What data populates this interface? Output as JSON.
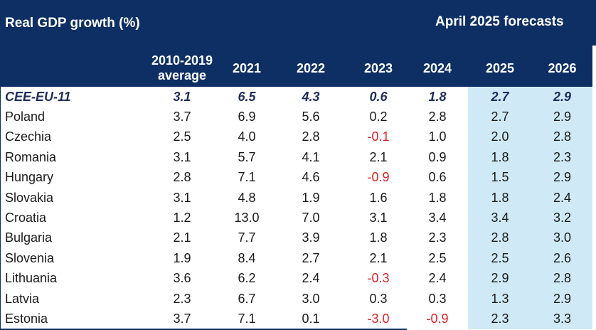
{
  "header": {
    "title": "Real GDP growth (%)",
    "forecast_label": "April 2025 forecasts",
    "columns": [
      "2010-2019 average",
      "2021",
      "2022",
      "2023",
      "2024",
      "2025",
      "2026"
    ]
  },
  "colors": {
    "header_bg": "#0d2f63",
    "forecast_bg": "#cfeaf6",
    "negative": "#e02020",
    "aggregate_text": "#1f2d5a"
  },
  "rows": [
    {
      "country": "CEE-EU-11",
      "values": [
        "3.1",
        "6.5",
        "4.3",
        "0.6",
        "1.8",
        "2.7",
        "2.9"
      ],
      "aggregate": true
    },
    {
      "country": "Poland",
      "values": [
        "3.7",
        "6.9",
        "5.6",
        "0.2",
        "2.8",
        "2.7",
        "2.9"
      ]
    },
    {
      "country": "Czechia",
      "values": [
        "2.5",
        "4.0",
        "2.8",
        "-0.1",
        "1.0",
        "2.0",
        "2.8"
      ]
    },
    {
      "country": "Romania",
      "values": [
        "3.1",
        "5.7",
        "4.1",
        "2.1",
        "0.9",
        "1.8",
        "2.3"
      ]
    },
    {
      "country": "Hungary",
      "values": [
        "2.8",
        "7.1",
        "4.6",
        "-0.9",
        "0.6",
        "1.5",
        "2.9"
      ]
    },
    {
      "country": "Slovakia",
      "values": [
        "3.1",
        "4.8",
        "1.9",
        "1.6",
        "1.8",
        "1.8",
        "2.4"
      ]
    },
    {
      "country": "Croatia",
      "values": [
        "1.2",
        "13.0",
        "7.0",
        "3.1",
        "3.4",
        "3.4",
        "3.2"
      ]
    },
    {
      "country": "Bulgaria",
      "values": [
        "2.1",
        "7.7",
        "3.9",
        "1.8",
        "2.3",
        "2.8",
        "3.0"
      ]
    },
    {
      "country": "Slovenia",
      "values": [
        "1.9",
        "8.4",
        "2.7",
        "2.1",
        "2.5",
        "2.5",
        "2.6"
      ]
    },
    {
      "country": "Lithuania",
      "values": [
        "3.6",
        "6.2",
        "2.4",
        "-0.3",
        "2.4",
        "2.9",
        "2.8"
      ]
    },
    {
      "country": "Latvia",
      "values": [
        "2.3",
        "6.7",
        "3.0",
        "0.3",
        "0.3",
        "1.3",
        "2.9"
      ]
    },
    {
      "country": "Estonia",
      "values": [
        "3.7",
        "7.1",
        "0.1",
        "-3.0",
        "-0.9",
        "2.3",
        "3.3"
      ]
    }
  ]
}
